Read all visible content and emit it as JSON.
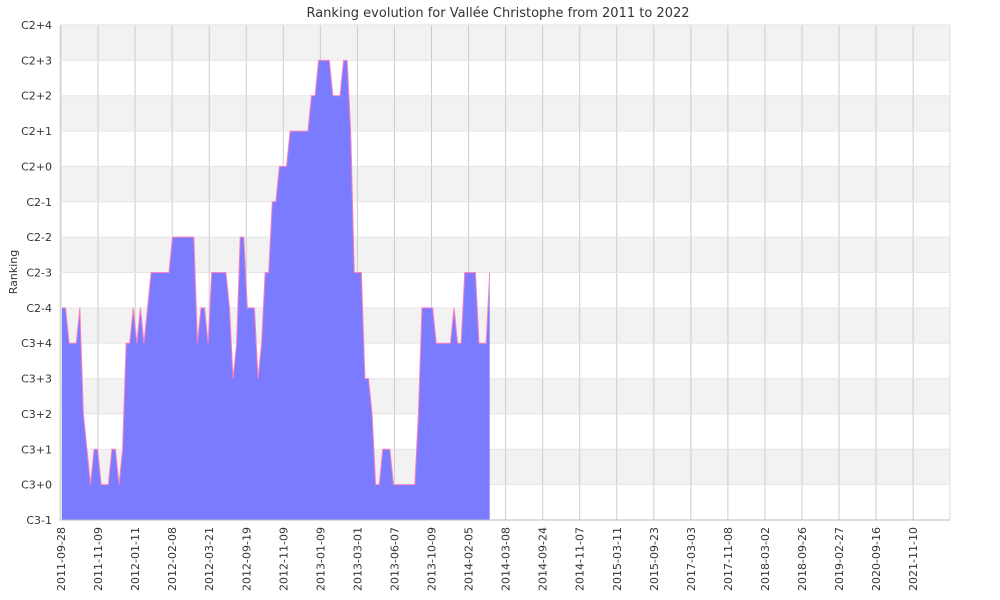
{
  "chart_data": {
    "type": "area",
    "title": "Ranking evolution for Vallée Christophe from 2011 to 2022",
    "xlabel": "",
    "ylabel": "Ranking",
    "y_ticks": [
      "C3-1",
      "C3+0",
      "C3+1",
      "C3+2",
      "C3+3",
      "C3+4",
      "C2-4",
      "C2-3",
      "C2-2",
      "C2-1",
      "C2+0",
      "C2+1",
      "C2+2",
      "C2+3",
      "C2+4"
    ],
    "x_ticks": [
      "2011-09-28",
      "2011-11-09",
      "2012-01-11",
      "2012-02-08",
      "2012-03-21",
      "2012-09-19",
      "2012-11-09",
      "2013-01-09",
      "2013-03-01",
      "2013-06-07",
      "2013-10-09",
      "2014-02-05",
      "2014-03-08",
      "2014-09-24",
      "2014-11-07",
      "2015-03-11",
      "2015-09-23",
      "2017-03-03",
      "2017-11-08",
      "2018-03-02",
      "2018-09-26",
      "2019-02-27",
      "2020-09-16",
      "2021-11-10"
    ],
    "grid": true,
    "colors": {
      "fill": "#7b7bff",
      "line": "#ff7fbf",
      "band": "#f2f2f2",
      "grid": "#cccccc"
    },
    "series": [
      {
        "values": [
          6,
          6,
          5,
          5,
          5,
          6,
          3,
          2,
          1,
          2,
          2,
          1,
          1,
          1,
          2,
          2,
          1,
          2,
          5,
          5,
          6,
          5,
          6,
          5,
          6,
          7,
          7,
          7,
          7,
          7,
          7,
          8,
          8,
          8,
          8,
          8,
          8,
          8,
          5,
          6,
          6,
          5,
          7,
          7,
          7,
          7,
          7,
          6,
          4,
          5,
          8,
          8,
          6,
          6,
          6,
          4,
          5,
          7,
          7,
          9,
          9,
          10,
          10,
          10,
          11,
          11,
          11,
          11,
          11,
          11,
          12,
          12,
          13,
          13,
          13,
          13,
          12,
          12,
          12,
          13,
          13,
          11,
          7,
          7,
          7,
          4,
          4,
          3,
          1,
          1,
          2,
          2,
          2,
          1,
          1,
          1,
          1,
          1,
          1,
          1,
          3,
          6,
          6,
          6,
          6,
          5,
          5,
          5,
          5,
          5,
          6,
          5,
          5,
          7,
          7,
          7,
          7,
          5,
          5,
          5,
          7
        ]
      }
    ]
  }
}
